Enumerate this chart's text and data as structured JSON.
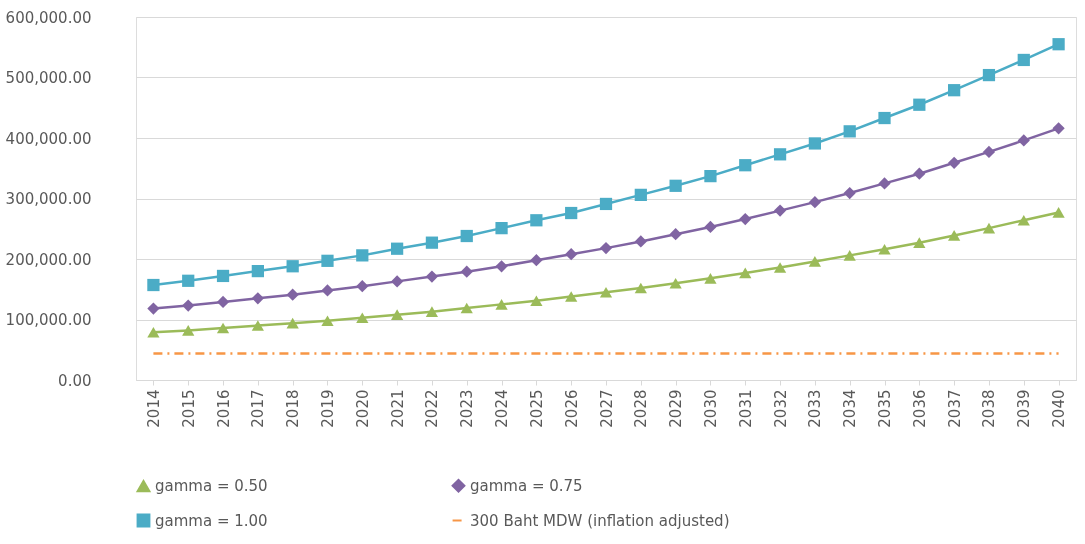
{
  "chart_data": {
    "type": "line",
    "categories": [
      "2014",
      "2015",
      "2016",
      "2017",
      "2018",
      "2019",
      "2020",
      "2021",
      "2022",
      "2023",
      "2024",
      "2025",
      "2026",
      "2027",
      "2028",
      "2029",
      "2030",
      "2031",
      "2032",
      "2033",
      "2034",
      "2035",
      "2036",
      "2037",
      "2038",
      "2039",
      "2040"
    ],
    "series": [
      {
        "name": "gamma = 0.50",
        "color": "#9bbb59",
        "marker": "triangle",
        "line_style": "solid",
        "values": [
          79000,
          82000,
          86000,
          90000,
          94000,
          98000,
          103000,
          108000,
          113000,
          119000,
          125000,
          131000,
          138000,
          145000,
          152000,
          160000,
          168000,
          177000,
          186000,
          196000,
          206000,
          216000,
          227000,
          239000,
          251000,
          264000,
          277000
        ]
      },
      {
        "name": "gamma = 0.75",
        "color": "#8064a2",
        "marker": "diamond",
        "line_style": "solid",
        "values": [
          118000,
          123000,
          129000,
          135000,
          141000,
          148000,
          155000,
          163000,
          171000,
          179000,
          188000,
          198000,
          208000,
          218000,
          229000,
          241000,
          253000,
          266000,
          280000,
          294000,
          309000,
          325000,
          341000,
          359000,
          377000,
          396000,
          416000
        ]
      },
      {
        "name": "gamma = 1.00",
        "color": "#4bacc6",
        "marker": "square",
        "line_style": "solid",
        "values": [
          157000,
          164000,
          172000,
          180000,
          188000,
          197000,
          206000,
          217000,
          227000,
          238000,
          251000,
          264000,
          276000,
          291000,
          306000,
          321000,
          337000,
          355000,
          373000,
          391000,
          411000,
          433000,
          455000,
          479000,
          504000,
          529000,
          555000
        ]
      },
      {
        "name": "300 Baht MDW (inflation adjusted)",
        "color": "#f79646",
        "marker": "none",
        "line_style": "dashdot",
        "values": [
          44000,
          44000,
          44000,
          44000,
          44000,
          44000,
          44000,
          44000,
          44000,
          44000,
          44000,
          44000,
          44000,
          44000,
          44000,
          44000,
          44000,
          44000,
          44000,
          44000,
          44000,
          44000,
          44000,
          44000,
          44000,
          44000,
          44000
        ]
      }
    ],
    "ylim": [
      0,
      600000
    ],
    "yticks": [
      {
        "value": 0,
        "label": "0.00"
      },
      {
        "value": 100000,
        "label": "100,000.00"
      },
      {
        "value": 200000,
        "label": "200,000.00"
      },
      {
        "value": 300000,
        "label": "300,000.00"
      },
      {
        "value": 400000,
        "label": "400,000.00"
      },
      {
        "value": 500000,
        "label": "500,000.00"
      },
      {
        "value": 600000,
        "label": "600,000.00"
      }
    ],
    "grid": "y",
    "legend": "bottom"
  }
}
